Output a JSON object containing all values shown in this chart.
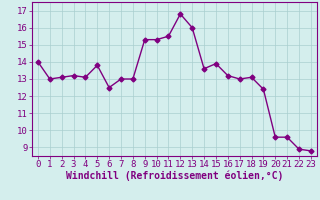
{
  "x": [
    0,
    1,
    2,
    3,
    4,
    5,
    6,
    7,
    8,
    9,
    10,
    11,
    12,
    13,
    14,
    15,
    16,
    17,
    18,
    19,
    20,
    21,
    22,
    23
  ],
  "y": [
    14.0,
    13.0,
    13.1,
    13.2,
    13.1,
    13.8,
    12.5,
    13.0,
    13.0,
    15.3,
    15.3,
    15.5,
    16.8,
    16.0,
    13.6,
    13.9,
    13.2,
    13.0,
    13.1,
    12.4,
    9.6,
    9.6,
    8.9,
    8.8
  ],
  "line_color": "#800080",
  "marker": "D",
  "markersize": 2.5,
  "linewidth": 1.0,
  "bg_color": "#d4eeed",
  "grid_color": "#aacfcf",
  "xlabel": "Windchill (Refroidissement éolien,°C)",
  "xlim": [
    -0.5,
    23.5
  ],
  "ylim": [
    8.5,
    17.5
  ],
  "yticks": [
    9,
    10,
    11,
    12,
    13,
    14,
    15,
    16,
    17
  ],
  "xticks": [
    0,
    1,
    2,
    3,
    4,
    5,
    6,
    7,
    8,
    9,
    10,
    11,
    12,
    13,
    14,
    15,
    16,
    17,
    18,
    19,
    20,
    21,
    22,
    23
  ],
  "tick_fontsize": 6.5,
  "xlabel_fontsize": 7.0
}
